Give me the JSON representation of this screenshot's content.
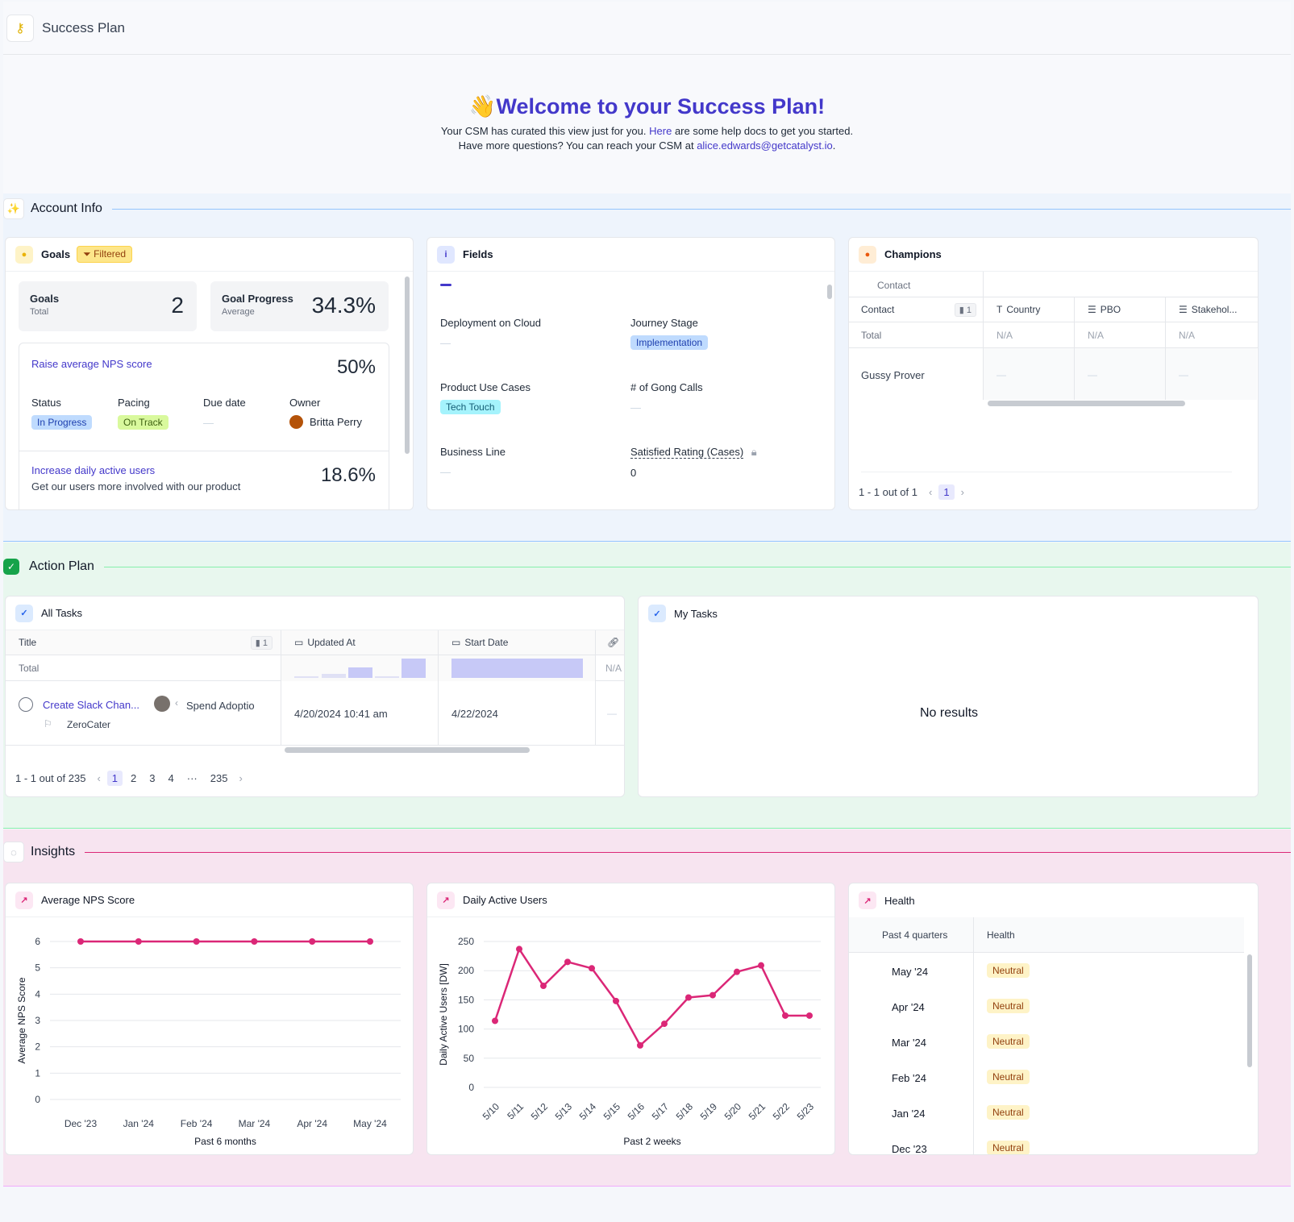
{
  "header": {
    "title": "Success Plan",
    "logo_icon": "key-icon"
  },
  "welcome": {
    "emoji": "👋",
    "title": "Welcome to your Success Plan!",
    "line1_pre": "Your CSM has curated this view just for you.",
    "line1_link": "Here",
    "line1_post": "are some help docs to get you started.",
    "line2_pre": "Have more questions? You can reach your CSM at",
    "line2_email": "alice.edwards@getcatalyst.io",
    "line2_post": "."
  },
  "account_info": {
    "label": "Account Info",
    "goals": {
      "title": "Goals",
      "filter_label": "Filtered",
      "stat_goals_label": "Goals",
      "stat_goals_sub": "Total",
      "stat_goals_value": "2",
      "stat_progress_label": "Goal Progress",
      "stat_progress_sub": "Average",
      "stat_progress_value": "34.3%",
      "goal1": {
        "title": "Raise average NPS score",
        "pct": "50%",
        "status_label": "Status",
        "status": "In Progress",
        "pacing_label": "Pacing",
        "pacing": "On Track",
        "due_label": "Due date",
        "due": "—",
        "owner_label": "Owner",
        "owner": "Britta Perry"
      },
      "goal2": {
        "title": "Increase daily active users",
        "desc": "Get our users more involved with our product",
        "pct": "18.6%"
      }
    },
    "fields": {
      "title": "Fields",
      "deployment_label": "Deployment on Cloud",
      "deployment_value": "—",
      "journey_label": "Journey Stage",
      "journey_value": "Implementation",
      "use_cases_label": "Product Use Cases",
      "use_cases_value": "Tech Touch",
      "gong_label": "# of Gong Calls",
      "gong_value": "—",
      "business_label": "Business Line",
      "business_value": "—",
      "satisfied_label": "Satisfied Rating (Cases)",
      "satisfied_value": "0"
    },
    "champions": {
      "title": "Champions",
      "group_label": "Contact",
      "col_contact": "Contact",
      "col_contact_count": "1",
      "col_country": "Country",
      "col_pbo": "PBO",
      "col_stake": "Stakehol...",
      "total_label": "Total",
      "na": "N/A",
      "row_name": "Gussy Prover",
      "row_dash": "—",
      "pager_text": "1 - 1 out of 1",
      "page": "1"
    }
  },
  "action_plan": {
    "label": "Action Plan",
    "all_tasks": {
      "title": "All Tasks",
      "col_title": "Title",
      "col_title_count": "1",
      "col_updated": "Updated At",
      "col_start": "Start Date",
      "total_label": "Total",
      "na": "N/A",
      "task_title": "Create Slack Chan...",
      "task_related": "Spend Adoptio",
      "task_company": "ZeroCater",
      "task_updated": "4/20/2024 10:41 am",
      "task_start": "4/22/2024",
      "task_dash": "—",
      "pager_text": "1 - 1 out of 235",
      "pages": [
        "1",
        "2",
        "3",
        "4",
        "···",
        "235"
      ]
    },
    "my_tasks": {
      "title": "My Tasks",
      "empty": "No results"
    }
  },
  "insights": {
    "label": "Insights",
    "nps": {
      "title": "Average NPS Score",
      "chart_data": {
        "type": "line",
        "categories": [
          "Dec '23",
          "Jan '24",
          "Feb '24",
          "Mar '24",
          "Apr '24",
          "May '24"
        ],
        "values": [
          6,
          6,
          6,
          6,
          6,
          6
        ],
        "xlabel": "Past 6 months",
        "ylabel": "Average NPS Score",
        "ylim": [
          0,
          6
        ],
        "yticks": [
          0,
          1,
          2,
          3,
          4,
          5,
          6
        ],
        "color": "#db2777"
      }
    },
    "dau": {
      "title": "Daily Active Users",
      "chart_data": {
        "type": "line",
        "categories": [
          "5/10",
          "5/11",
          "5/12",
          "5/13",
          "5/14",
          "5/15",
          "5/16",
          "5/17",
          "5/18",
          "5/19",
          "5/20",
          "5/21",
          "5/22",
          "5/23"
        ],
        "values": [
          114,
          237,
          174,
          215,
          204,
          148,
          72,
          109,
          154,
          158,
          198,
          209,
          123,
          123
        ],
        "xlabel": "Past 2 weeks",
        "ylabel": "Daily Active Users [DW]",
        "ylim": [
          0,
          250
        ],
        "yticks": [
          0,
          50,
          100,
          150,
          200,
          250
        ],
        "color": "#db2777"
      }
    },
    "health": {
      "title": "Health",
      "col_period": "Past 4 quarters",
      "col_health": "Health",
      "rows": [
        {
          "period": "May '24",
          "health": "Neutral"
        },
        {
          "period": "Apr '24",
          "health": "Neutral"
        },
        {
          "period": "Mar '24",
          "health": "Neutral"
        },
        {
          "period": "Feb '24",
          "health": "Neutral"
        },
        {
          "period": "Jan '24",
          "health": "Neutral"
        },
        {
          "period": "Dec '23",
          "health": "Neutral"
        }
      ]
    }
  },
  "colors": {
    "accent": "#4338ca",
    "account_bg": "#eef4fc",
    "action_bg": "#e8f7ee",
    "insights_bg": "#f7e4f0",
    "line": "#db2777"
  }
}
